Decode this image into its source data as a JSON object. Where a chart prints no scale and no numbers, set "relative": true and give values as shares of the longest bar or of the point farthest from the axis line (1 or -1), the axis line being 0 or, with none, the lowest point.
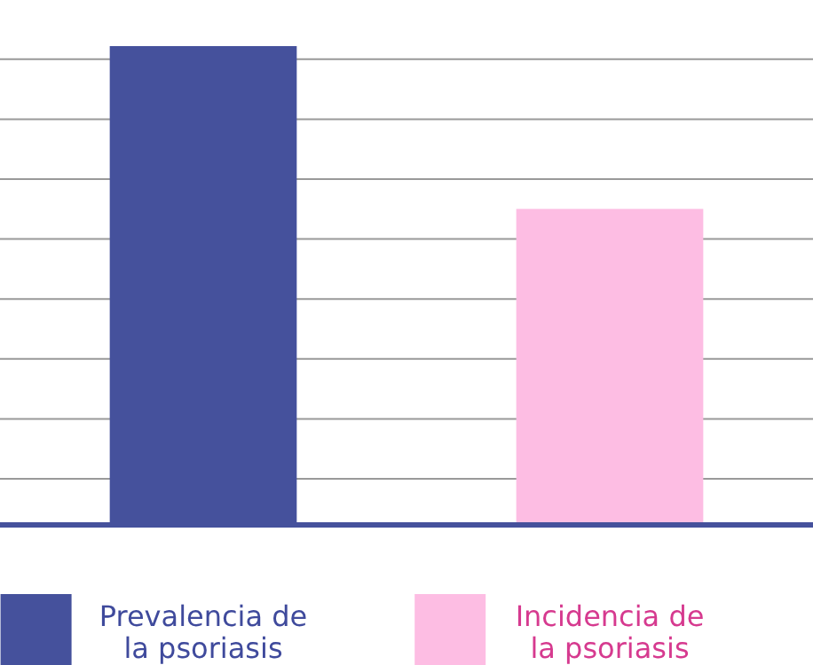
{
  "chart_data": {
    "type": "bar",
    "relative": true,
    "categories": [
      "Prevalencia de la psoriasis",
      "Incidencia de la psoriasis"
    ],
    "values": [
      1,
      0.66
    ],
    "colors": [
      "#45519c",
      "#fdbde3"
    ],
    "grid": true
  }
}
